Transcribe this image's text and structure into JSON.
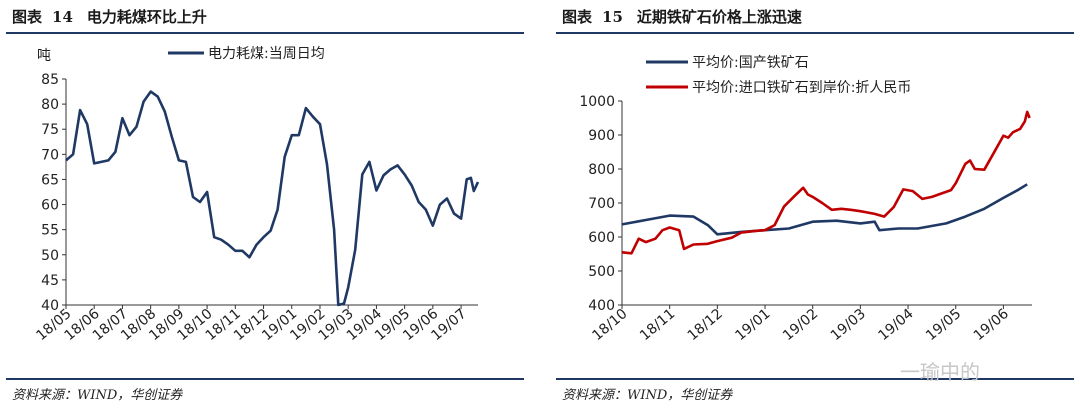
{
  "left": {
    "title_prefix": "图表",
    "title_number": "14",
    "title_text": "电力耗煤环比上升",
    "source": "资料来源：WIND，华创证券"
  },
  "right": {
    "title_prefix": "图表",
    "title_number": "15",
    "title_text": "近期铁矿石价格上涨迅速",
    "source": "资料来源：WIND，华创证券"
  },
  "watermark": "一瑜中的",
  "colors": {
    "navy": "#1f3864",
    "red": "#c00000"
  },
  "chart_data": [
    {
      "type": "line",
      "unit_label": "吨",
      "ylim": [
        40,
        85
      ],
      "yticks": [
        40,
        45,
        50,
        55,
        60,
        65,
        70,
        75,
        80,
        85
      ],
      "xticks": [
        "18/05",
        "18/06",
        "18/07",
        "18/08",
        "18/09",
        "18/10",
        "18/11",
        "18/12",
        "19/01",
        "19/02",
        "19/03",
        "19/04",
        "19/05",
        "19/06",
        "19/07"
      ],
      "xlim": [
        0,
        14.6
      ],
      "series": [
        {
          "name": "电力耗煤:当周日均",
          "color": "#1f3864",
          "points": [
            [
              0.0,
              68.8
            ],
            [
              0.25,
              70.0
            ],
            [
              0.5,
              78.8
            ],
            [
              0.75,
              76.0
            ],
            [
              1.0,
              68.2
            ],
            [
              1.25,
              68.5
            ],
            [
              1.5,
              68.8
            ],
            [
              1.75,
              70.5
            ],
            [
              2.0,
              77.2
            ],
            [
              2.25,
              73.8
            ],
            [
              2.5,
              75.5
            ],
            [
              2.75,
              80.5
            ],
            [
              3.0,
              82.5
            ],
            [
              3.25,
              81.5
            ],
            [
              3.5,
              78.5
            ],
            [
              3.75,
              73.5
            ],
            [
              4.0,
              68.8
            ],
            [
              4.25,
              68.5
            ],
            [
              4.5,
              61.5
            ],
            [
              4.75,
              60.5
            ],
            [
              5.0,
              62.5
            ],
            [
              5.25,
              53.5
            ],
            [
              5.5,
              53.0
            ],
            [
              5.75,
              52.0
            ],
            [
              6.0,
              50.8
            ],
            [
              6.25,
              50.8
            ],
            [
              6.5,
              49.5
            ],
            [
              6.75,
              52.0
            ],
            [
              7.0,
              53.5
            ],
            [
              7.25,
              54.8
            ],
            [
              7.5,
              59.0
            ],
            [
              7.75,
              69.5
            ],
            [
              8.0,
              73.8
            ],
            [
              8.25,
              73.8
            ],
            [
              8.5,
              79.2
            ],
            [
              8.75,
              77.5
            ],
            [
              9.0,
              76.0
            ],
            [
              9.25,
              68.0
            ],
            [
              9.5,
              55.0
            ],
            [
              9.65,
              40.0
            ],
            [
              9.85,
              40.3
            ],
            [
              10.0,
              43.5
            ],
            [
              10.25,
              51.0
            ],
            [
              10.5,
              66.0
            ],
            [
              10.75,
              68.5
            ],
            [
              11.0,
              62.8
            ],
            [
              11.25,
              65.8
            ],
            [
              11.5,
              67.0
            ],
            [
              11.75,
              67.8
            ],
            [
              12.0,
              66.0
            ],
            [
              12.25,
              63.8
            ],
            [
              12.5,
              60.5
            ],
            [
              12.75,
              59.0
            ],
            [
              13.0,
              55.8
            ],
            [
              13.25,
              60.0
            ],
            [
              13.5,
              61.2
            ],
            [
              13.75,
              58.2
            ],
            [
              14.0,
              57.2
            ],
            [
              14.2,
              65.0
            ],
            [
              14.35,
              65.3
            ],
            [
              14.45,
              62.7
            ],
            [
              14.6,
              64.5
            ]
          ]
        }
      ]
    },
    {
      "type": "line",
      "ylim": [
        400,
        1000
      ],
      "yticks": [
        400,
        500,
        600,
        700,
        800,
        900,
        1000
      ],
      "xticks": [
        "18/10",
        "18/11",
        "18/12",
        "19/01",
        "19/02",
        "19/03",
        "19/04",
        "19/05",
        "19/06"
      ],
      "xlim": [
        0,
        8.6
      ],
      "series": [
        {
          "name": "平均价:国产铁矿石",
          "color": "#1f3864",
          "points": [
            [
              0.0,
              637
            ],
            [
              0.5,
              650
            ],
            [
              1.0,
              663
            ],
            [
              1.5,
              660
            ],
            [
              1.8,
              635
            ],
            [
              2.0,
              608
            ],
            [
              2.5,
              615
            ],
            [
              3.0,
              620
            ],
            [
              3.5,
              625
            ],
            [
              4.0,
              645
            ],
            [
              4.5,
              648
            ],
            [
              5.0,
              640
            ],
            [
              5.3,
              645
            ],
            [
              5.4,
              620
            ],
            [
              5.8,
              625
            ],
            [
              6.2,
              625
            ],
            [
              6.8,
              640
            ],
            [
              7.2,
              660
            ],
            [
              7.6,
              683
            ],
            [
              8.0,
              715
            ],
            [
              8.3,
              738
            ],
            [
              8.5,
              755
            ]
          ]
        },
        {
          "name": "平均价:进口铁矿石到岸价:折人民币",
          "color": "#c00000",
          "points": [
            [
              0.0,
              555
            ],
            [
              0.2,
              552
            ],
            [
              0.35,
              595
            ],
            [
              0.5,
              585
            ],
            [
              0.7,
              595
            ],
            [
              0.85,
              620
            ],
            [
              1.0,
              628
            ],
            [
              1.2,
              620
            ],
            [
              1.3,
              565
            ],
            [
              1.5,
              578
            ],
            [
              1.8,
              580
            ],
            [
              2.0,
              588
            ],
            [
              2.3,
              598
            ],
            [
              2.5,
              613
            ],
            [
              2.8,
              618
            ],
            [
              3.0,
              620
            ],
            [
              3.2,
              635
            ],
            [
              3.4,
              690
            ],
            [
              3.6,
              718
            ],
            [
              3.8,
              745
            ],
            [
              3.9,
              725
            ],
            [
              4.0,
              718
            ],
            [
              4.2,
              700
            ],
            [
              4.4,
              680
            ],
            [
              4.6,
              683
            ],
            [
              4.8,
              680
            ],
            [
              5.0,
              676
            ],
            [
              5.3,
              668
            ],
            [
              5.5,
              660
            ],
            [
              5.7,
              688
            ],
            [
              5.9,
              740
            ],
            [
              6.1,
              735
            ],
            [
              6.3,
              712
            ],
            [
              6.5,
              718
            ],
            [
              6.7,
              728
            ],
            [
              6.9,
              738
            ],
            [
              7.0,
              758
            ],
            [
              7.2,
              815
            ],
            [
              7.3,
              825
            ],
            [
              7.4,
              800
            ],
            [
              7.6,
              798
            ],
            [
              7.8,
              848
            ],
            [
              8.0,
              898
            ],
            [
              8.1,
              892
            ],
            [
              8.2,
              908
            ],
            [
              8.35,
              918
            ],
            [
              8.45,
              940
            ],
            [
              8.5,
              968
            ],
            [
              8.55,
              950
            ]
          ]
        }
      ]
    }
  ]
}
